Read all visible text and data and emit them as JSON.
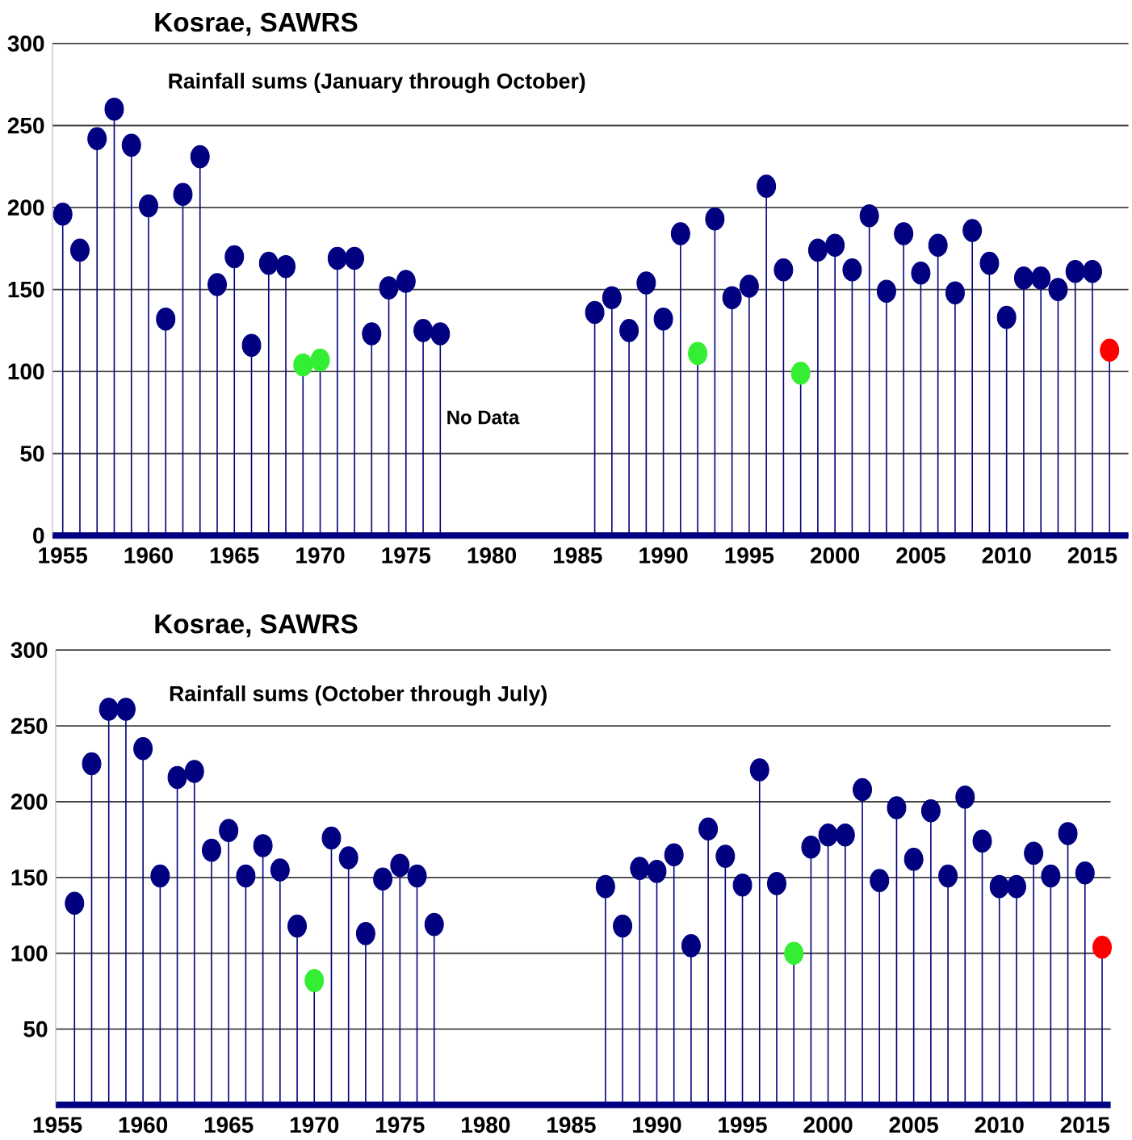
{
  "chart_data": [
    {
      "type": "lollipop",
      "title": "Kosrae, SAWRS",
      "subtitle": "Rainfall sums (January through October)",
      "x": [
        1955,
        1956,
        1957,
        1958,
        1959,
        1960,
        1961,
        1962,
        1963,
        1964,
        1965,
        1966,
        1967,
        1968,
        1969,
        1970,
        1971,
        1972,
        1973,
        1974,
        1975,
        1976,
        1977,
        1986,
        1987,
        1988,
        1989,
        1990,
        1991,
        1992,
        1993,
        1994,
        1995,
        1996,
        1997,
        1998,
        1999,
        2000,
        2001,
        2002,
        2003,
        2004,
        2005,
        2006,
        2007,
        2008,
        2009,
        2010,
        2011,
        2012,
        2013,
        2014,
        2015,
        2016
      ],
      "values": [
        196,
        174,
        242,
        260,
        238,
        201,
        132,
        208,
        231,
        153,
        170,
        116,
        166,
        164,
        104,
        107,
        169,
        169,
        123,
        151,
        155,
        125,
        123,
        136,
        145,
        125,
        154,
        132,
        184,
        111,
        193,
        145,
        152,
        213,
        162,
        99,
        174,
        177,
        162,
        195,
        149,
        184,
        160,
        177,
        148,
        186,
        166,
        133,
        157,
        157,
        150,
        161,
        161,
        113
      ],
      "colors": [
        "#000080",
        "#000080",
        "#000080",
        "#000080",
        "#000080",
        "#000080",
        "#000080",
        "#000080",
        "#000080",
        "#000080",
        "#000080",
        "#000080",
        "#000080",
        "#000080",
        "#33ee33",
        "#33ee33",
        "#000080",
        "#000080",
        "#000080",
        "#000080",
        "#000080",
        "#000080",
        "#000080",
        "#000080",
        "#000080",
        "#000080",
        "#000080",
        "#000080",
        "#000080",
        "#33ee33",
        "#000080",
        "#000080",
        "#000080",
        "#000080",
        "#000080",
        "#33ee33",
        "#000080",
        "#000080",
        "#000080",
        "#000080",
        "#000080",
        "#000080",
        "#000080",
        "#000080",
        "#000080",
        "#000080",
        "#000080",
        "#000080",
        "#000080",
        "#000080",
        "#000080",
        "#000080",
        "#000080",
        "#ff0000"
      ],
      "xlim": [
        1954.4,
        2017.1
      ],
      "ylim": [
        0,
        300
      ],
      "xticks": [
        1955,
        1960,
        1965,
        1970,
        1975,
        1980,
        1985,
        1990,
        1995,
        2000,
        2005,
        2010,
        2015
      ],
      "yticks": [
        0,
        50,
        100,
        150,
        200,
        250,
        300
      ],
      "grid": "y",
      "marker": "circle",
      "annotations": [
        {
          "text": "No Data"
        }
      ]
    },
    {
      "type": "lollipop",
      "title": "Kosrae, SAWRS",
      "subtitle": "Rainfall sums (October through July)",
      "x": [
        1956,
        1957,
        1958,
        1959,
        1960,
        1961,
        1962,
        1963,
        1964,
        1965,
        1966,
        1967,
        1968,
        1969,
        1970,
        1971,
        1972,
        1973,
        1974,
        1975,
        1976,
        1977,
        1987,
        1988,
        1989,
        1990,
        1991,
        1992,
        1993,
        1994,
        1995,
        1996,
        1997,
        1998,
        1999,
        2000,
        2001,
        2002,
        2003,
        2004,
        2005,
        2006,
        2007,
        2008,
        2009,
        2010,
        2011,
        2012,
        2013,
        2014,
        2015,
        2016
      ],
      "values": [
        133,
        225,
        261,
        261,
        235,
        151,
        216,
        220,
        168,
        181,
        151,
        171,
        155,
        118,
        82,
        176,
        163,
        113,
        149,
        158,
        151,
        119,
        144,
        118,
        156,
        154,
        165,
        105,
        182,
        164,
        145,
        221,
        146,
        100,
        170,
        178,
        178,
        208,
        148,
        196,
        162,
        194,
        151,
        203,
        174,
        144,
        144,
        166,
        151,
        179,
        153,
        104
      ],
      "colors": [
        "#000080",
        "#000080",
        "#000080",
        "#000080",
        "#000080",
        "#000080",
        "#000080",
        "#000080",
        "#000080",
        "#000080",
        "#000080",
        "#000080",
        "#000080",
        "#000080",
        "#33ee33",
        "#000080",
        "#000080",
        "#000080",
        "#000080",
        "#000080",
        "#000080",
        "#000080",
        "#000080",
        "#000080",
        "#000080",
        "#000080",
        "#000080",
        "#000080",
        "#000080",
        "#000080",
        "#000080",
        "#000080",
        "#000080",
        "#33ee33",
        "#000080",
        "#000080",
        "#000080",
        "#000080",
        "#000080",
        "#000080",
        "#000080",
        "#000080",
        "#000080",
        "#000080",
        "#000080",
        "#000080",
        "#000080",
        "#000080",
        "#000080",
        "#000080",
        "#000080",
        "#ff0000"
      ],
      "xlim": [
        1954.9,
        2016.5
      ],
      "ylim": [
        0,
        300
      ],
      "xticks": [
        1955,
        1960,
        1965,
        1970,
        1975,
        1980,
        1985,
        1990,
        1995,
        2000,
        2005,
        2010,
        2015
      ],
      "yticks": [
        50,
        100,
        150,
        200,
        250,
        300
      ],
      "grid": "y",
      "marker": "circle"
    }
  ]
}
